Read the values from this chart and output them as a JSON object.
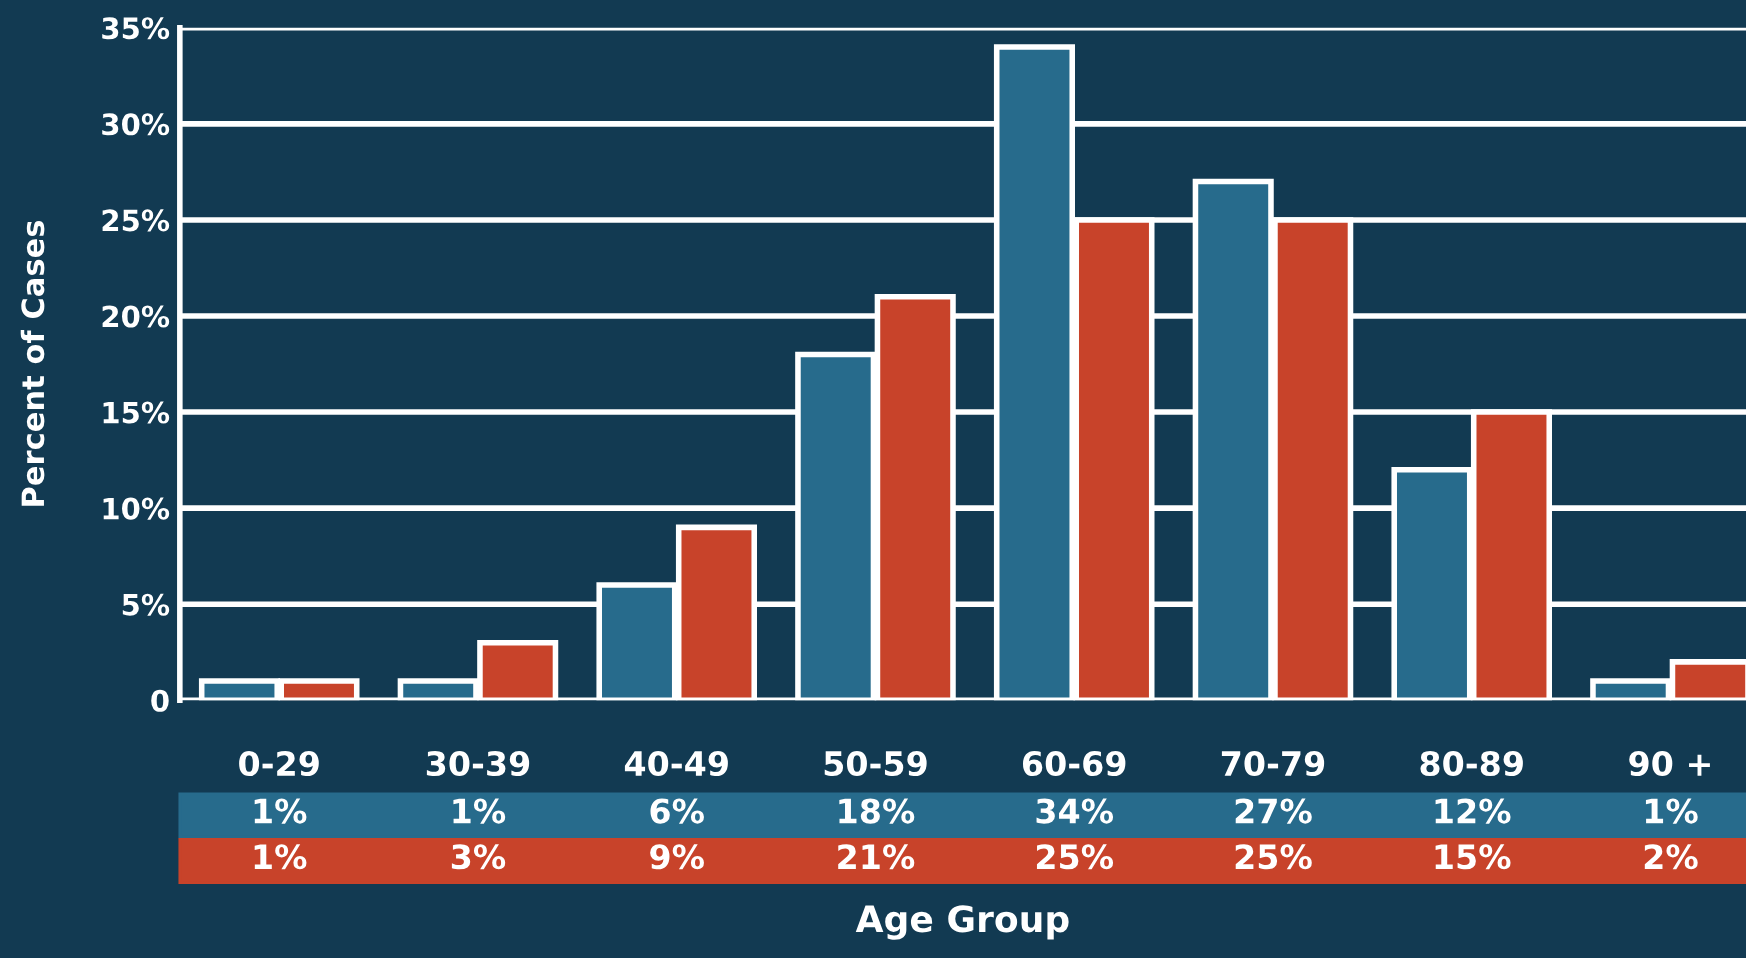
{
  "chart_data": {
    "type": "bar",
    "xlabel": "Age Group",
    "ylabel": "Percent of Cases",
    "categories": [
      "0-29",
      "30-39",
      "40-49",
      "50-59",
      "60-69",
      "70-79",
      "80-89",
      "90 +"
    ],
    "series": [
      {
        "color": "#276b8c",
        "values": [
          1,
          1,
          6,
          18,
          34,
          27,
          12,
          1
        ],
        "value_labels": [
          "1%",
          "1%",
          "6%",
          "18%",
          "34%",
          "27%",
          "12%",
          "1%"
        ]
      },
      {
        "color": "#c8432a",
        "values": [
          1,
          3,
          9,
          21,
          25,
          25,
          15,
          2
        ],
        "value_labels": [
          "1%",
          "3%",
          "9%",
          "21%",
          "25%",
          "25%",
          "15%",
          "2%"
        ]
      }
    ],
    "ylim": [
      0,
      35
    ],
    "yticks": [
      0,
      {
        "value": 5,
        "label": "5%"
      },
      {
        "value": 10,
        "label": "10%"
      },
      {
        "value": 15,
        "label": "15%"
      },
      {
        "value": 20,
        "label": "20%"
      },
      {
        "value": 25,
        "label": "25%"
      },
      {
        "value": 30,
        "label": "30%"
      },
      {
        "value": 35,
        "label": "35%"
      }
    ],
    "grid": "y",
    "legend": false
  }
}
